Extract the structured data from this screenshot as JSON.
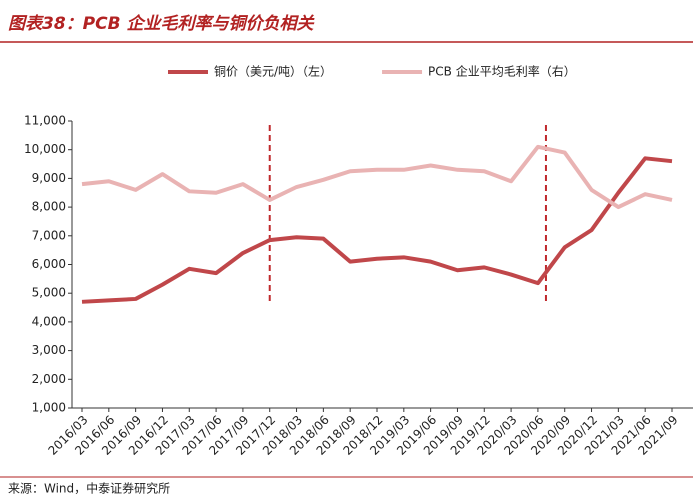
{
  "chart_data": {
    "type": "line",
    "title": "图表38：PCB 企业毛利率与铜价负相关",
    "source": "来源：Wind，中泰证券研究所",
    "categories": [
      "2016/03",
      "2016/06",
      "2016/09",
      "2016/12",
      "2017/03",
      "2017/06",
      "2017/09",
      "2017/12",
      "2018/03",
      "2018/06",
      "2018/09",
      "2018/12",
      "2019/03",
      "2019/06",
      "2019/09",
      "2019/12",
      "2020/03",
      "2020/06",
      "2020/09",
      "2020/12",
      "2021/03",
      "2021/06",
      "2021/09"
    ],
    "series": [
      {
        "name": "铜价（美元/吨）（左）",
        "color": "#c0474a",
        "values": [
          4700,
          4750,
          4800,
          5300,
          5850,
          5700,
          6400,
          6850,
          6950,
          6900,
          6100,
          6200,
          6250,
          6100,
          5800,
          5900,
          5650,
          5350,
          6600,
          7200,
          8500,
          9700,
          9600
        ]
      },
      {
        "name": "PCB 企业平均毛利率（右）",
        "color": "#e9b3b3",
        "values": [
          8800,
          8900,
          8600,
          9150,
          8550,
          8500,
          8800,
          8250,
          8700,
          8950,
          9250,
          9300,
          9300,
          9450,
          9300,
          9250,
          8900,
          10100,
          9900,
          8600,
          8000,
          8450,
          8250
        ]
      }
    ],
    "ylim": [
      1000,
      11000
    ],
    "yticks": [
      {
        "value": 1000,
        "label": "1,000"
      },
      {
        "value": 2000,
        "label": "2,000"
      },
      {
        "value": 3000,
        "label": "3,000"
      },
      {
        "value": 4000,
        "label": "4,000"
      },
      {
        "value": 5000,
        "label": "5,000"
      },
      {
        "value": 6000,
        "label": "6,000"
      },
      {
        "value": 7000,
        "label": "7,000"
      },
      {
        "value": 8000,
        "label": "8,000"
      },
      {
        "value": 9000,
        "label": "9,000"
      },
      {
        "value": 10000,
        "label": "10,000"
      },
      {
        "value": 11000,
        "label": "11,000"
      }
    ],
    "legend": "top"
  }
}
